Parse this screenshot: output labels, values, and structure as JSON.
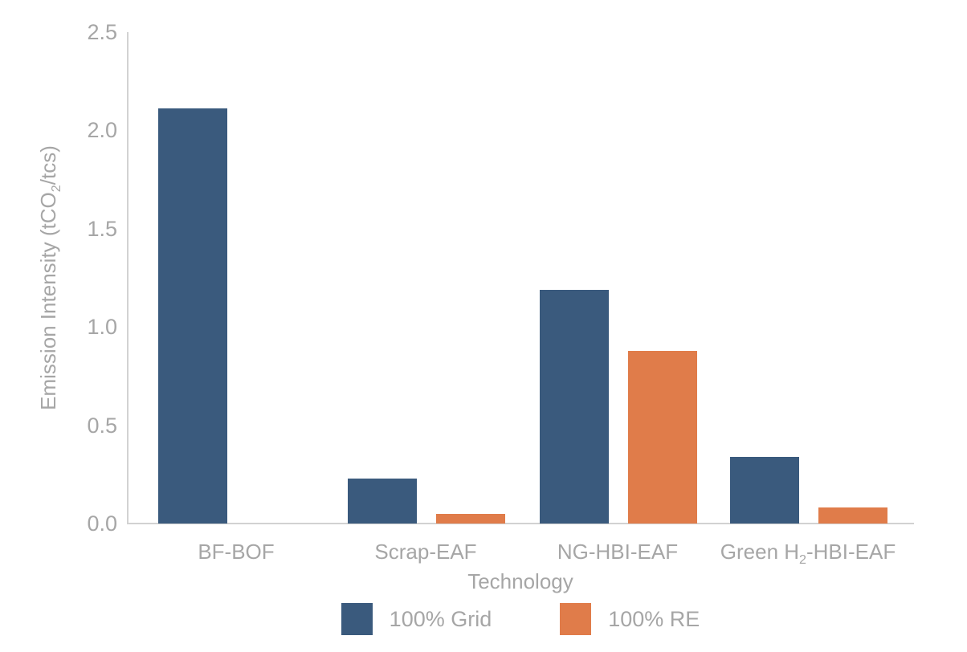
{
  "chart_data": {
    "type": "bar",
    "title": "",
    "categories": [
      {
        "pre": "BF-BOF",
        "sub": "",
        "post": ""
      },
      {
        "pre": "Scrap-EAF",
        "sub": "",
        "post": ""
      },
      {
        "pre": "NG-HBI-EAF",
        "sub": "",
        "post": ""
      },
      {
        "pre": "Green H",
        "sub": "2",
        "post": "-HBI-EAF"
      }
    ],
    "series": [
      {
        "name": "100% Grid",
        "color": "#3a5a7d",
        "values": [
          2.11,
          0.23,
          1.19,
          0.34
        ]
      },
      {
        "name": "100% RE",
        "color": "#e07c4a",
        "values": [
          0,
          0.05,
          0.88,
          0.08
        ]
      }
    ],
    "xlabel": "Technology",
    "ylabel": {
      "pre": "Emission Intensity (tCO",
      "sub": "2",
      "post": "/tcs)"
    },
    "ylim": [
      0,
      2.5
    ],
    "ytick_labels": [
      "0.0",
      "0.5",
      "1.0",
      "1.5",
      "2.0",
      "2.5"
    ],
    "grid": false,
    "legend_position": "bottom-center",
    "background": "#ffffff",
    "axis_line_color": "#d2d2d2",
    "text_color": "#a6a6a6"
  }
}
